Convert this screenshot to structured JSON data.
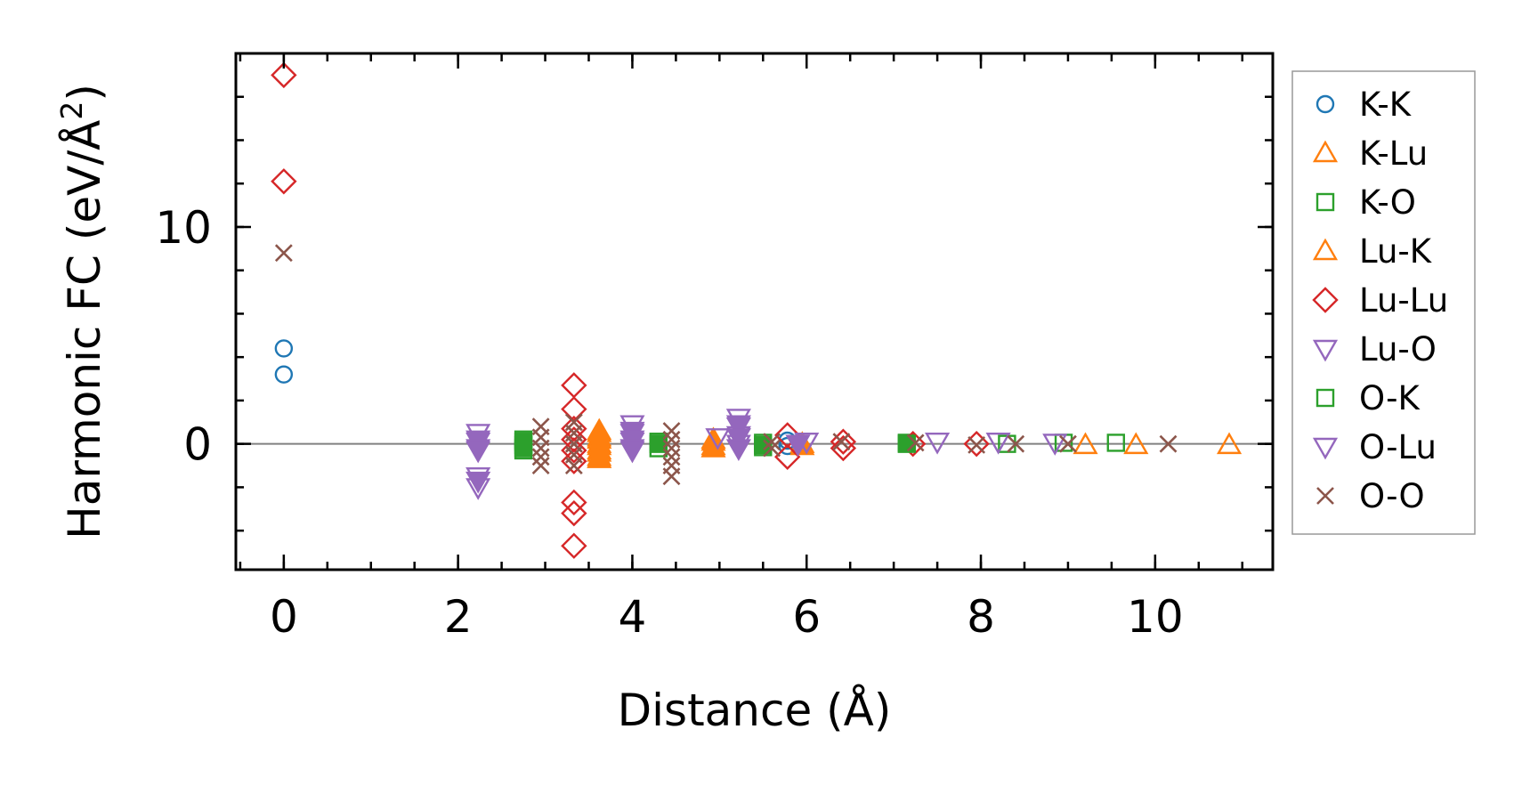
{
  "chart_data": {
    "type": "scatter",
    "title": "",
    "xlabel": "Distance (Å)",
    "ylabel_main": "Harmonic FC (eV/Å",
    "ylabel_sup": "2",
    "ylabel_close": ")",
    "xlim": [
      -0.55,
      11.35
    ],
    "ylim": [
      -5.8,
      18.0
    ],
    "x_ticks": [
      0,
      2,
      4,
      6,
      8,
      10
    ],
    "x_tick_labels": [
      "0",
      "2",
      "4",
      "6",
      "8",
      "10"
    ],
    "y_ticks": [
      0,
      10
    ],
    "y_tick_labels": [
      "0",
      "10"
    ],
    "x_minor_step": 0.5,
    "y_minor_step": 2,
    "zero_line": true,
    "grid": false,
    "legend_position": "outside-right",
    "series": [
      {
        "name": "K-K",
        "marker": "circle",
        "color": "#1f77b4",
        "filled": false,
        "points": [
          [
            0,
            4.4
          ],
          [
            0,
            3.2
          ],
          [
            5.78,
            0.15
          ],
          [
            5.78,
            -0.1
          ]
        ]
      },
      {
        "name": "K-Lu",
        "marker": "triangle-up",
        "color": "#ff7f0e",
        "filled": false,
        "points": [
          [
            3.62,
            0.5
          ],
          [
            3.62,
            0.2
          ],
          [
            3.62,
            -0.1
          ],
          [
            3.62,
            -0.4
          ],
          [
            3.62,
            -0.7
          ],
          [
            4.93,
            0.2
          ],
          [
            4.93,
            -0.1
          ],
          [
            5.95,
            0.0
          ],
          [
            9.2,
            -0.05
          ],
          [
            9.78,
            -0.05
          ],
          [
            10.85,
            -0.05
          ]
        ]
      },
      {
        "name": "K-O",
        "marker": "square",
        "color": "#2ca02c",
        "filled": false,
        "points": [
          [
            2.75,
            0.2
          ],
          [
            2.75,
            -0.05
          ],
          [
            2.75,
            -0.3
          ],
          [
            4.3,
            0.1
          ],
          [
            4.3,
            -0.2
          ],
          [
            5.5,
            0.05
          ],
          [
            5.5,
            -0.15
          ],
          [
            7.15,
            0.05
          ],
          [
            8.3,
            0.0
          ],
          [
            8.95,
            0.05
          ],
          [
            9.55,
            0.05
          ]
        ]
      },
      {
        "name": "Lu-K",
        "marker": "triangle-up",
        "color": "#ff7f0e",
        "filled": true,
        "points": [
          [
            3.62,
            0.6
          ],
          [
            3.62,
            0.3
          ],
          [
            3.62,
            0.0
          ],
          [
            3.62,
            -0.3
          ],
          [
            3.62,
            -0.6
          ],
          [
            4.93,
            0.1
          ],
          [
            4.93,
            -0.2
          ],
          [
            5.95,
            -0.1
          ]
        ]
      },
      {
        "name": "Lu-Lu",
        "marker": "diamond",
        "color": "#d62728",
        "filled": false,
        "points": [
          [
            0,
            17.0
          ],
          [
            0,
            12.1
          ],
          [
            3.33,
            2.7
          ],
          [
            3.33,
            1.6
          ],
          [
            3.33,
            0.7
          ],
          [
            3.33,
            0.2
          ],
          [
            3.33,
            -0.3
          ],
          [
            3.33,
            -0.8
          ],
          [
            3.33,
            -2.7
          ],
          [
            3.33,
            -3.2
          ],
          [
            3.33,
            -4.7
          ],
          [
            5.78,
            0.4
          ],
          [
            5.78,
            -0.6
          ],
          [
            6.42,
            0.1
          ],
          [
            6.42,
            -0.2
          ],
          [
            7.22,
            0.0
          ],
          [
            7.95,
            0.0
          ]
        ]
      },
      {
        "name": "Lu-O",
        "marker": "triangle-down",
        "color": "#9467bd",
        "filled": false,
        "points": [
          [
            2.23,
            0.5
          ],
          [
            2.23,
            0.1
          ],
          [
            2.23,
            -0.3
          ],
          [
            2.23,
            -1.5
          ],
          [
            2.23,
            -2.0
          ],
          [
            4.0,
            0.9
          ],
          [
            4.0,
            0.5
          ],
          [
            4.0,
            0.1
          ],
          [
            4.0,
            -0.3
          ],
          [
            5.22,
            1.2
          ],
          [
            5.22,
            0.8
          ],
          [
            5.22,
            0.4
          ],
          [
            5.22,
            0.0
          ],
          [
            4.98,
            0.3
          ],
          [
            6.0,
            0.1
          ],
          [
            7.5,
            0.1
          ],
          [
            8.2,
            0.1
          ],
          [
            8.85,
            0.05
          ]
        ]
      },
      {
        "name": "O-K",
        "marker": "square",
        "color": "#2ca02c",
        "filled": true,
        "points": [
          [
            2.75,
            0.1
          ],
          [
            2.75,
            -0.2
          ],
          [
            4.3,
            0.0
          ],
          [
            5.5,
            -0.05
          ],
          [
            7.15,
            0.0
          ]
        ]
      },
      {
        "name": "O-Lu",
        "marker": "triangle-down",
        "color": "#9467bd",
        "filled": true,
        "points": [
          [
            2.23,
            0.2
          ],
          [
            2.23,
            -0.2
          ],
          [
            2.23,
            -1.7
          ],
          [
            4.0,
            0.6
          ],
          [
            4.0,
            0.2
          ],
          [
            4.0,
            -0.2
          ],
          [
            5.22,
            0.9
          ],
          [
            5.22,
            0.3
          ],
          [
            5.22,
            -0.2
          ],
          [
            5.9,
            0.0
          ]
        ]
      },
      {
        "name": "O-O",
        "marker": "x",
        "color": "#8c564b",
        "filled": false,
        "points": [
          [
            0,
            8.8
          ],
          [
            2.95,
            0.8
          ],
          [
            2.95,
            0.3
          ],
          [
            2.95,
            -0.2
          ],
          [
            2.95,
            -0.6
          ],
          [
            2.95,
            -1.0
          ],
          [
            3.33,
            1.0
          ],
          [
            3.33,
            0.5
          ],
          [
            3.33,
            0.0
          ],
          [
            3.33,
            -0.5
          ],
          [
            3.33,
            -1.0
          ],
          [
            4.45,
            0.6
          ],
          [
            4.45,
            0.2
          ],
          [
            4.45,
            -0.2
          ],
          [
            4.45,
            -0.6
          ],
          [
            4.45,
            -1.0
          ],
          [
            4.45,
            -1.5
          ],
          [
            5.6,
            0.1
          ],
          [
            5.6,
            -0.2
          ],
          [
            6.4,
            0.1
          ],
          [
            7.25,
            0.05
          ],
          [
            7.95,
            -0.05
          ],
          [
            8.4,
            0.0
          ],
          [
            9.0,
            0.0
          ],
          [
            10.15,
            0.0
          ]
        ]
      }
    ]
  }
}
